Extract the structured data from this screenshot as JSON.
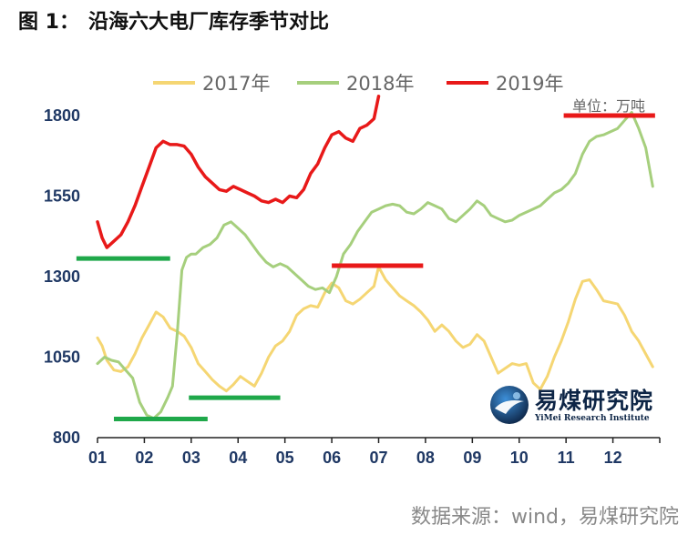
{
  "title": {
    "label": "图 1：",
    "text": "沿海六大电厂库存季节对比"
  },
  "unit_label": "单位：万吨",
  "source_label": "数据来源：wind，易煤研究院",
  "watermark": {
    "name": "易煤研究院",
    "subtitle": "YiMei Research Institute"
  },
  "chart_data": {
    "type": "line",
    "title": "沿海六大电厂库存季节对比",
    "ylabel": "万吨",
    "xlabel": "",
    "ylim": [
      800,
      1800
    ],
    "yticks": [
      800,
      1050,
      1300,
      1550,
      1800
    ],
    "xlim": [
      1,
      13
    ],
    "xticks": [
      "01",
      "02",
      "03",
      "04",
      "05",
      "06",
      "07",
      "08",
      "09",
      "10",
      "11",
      "12"
    ],
    "colors": {
      "2017年": "#f5d673",
      "2018年": "#a6cf7d",
      "2019年": "#e81919",
      "markers": "#1fa84a",
      "axis": "#222222",
      "tick": "#1f3864"
    },
    "series": [
      {
        "name": "2017年",
        "x": [
          1.0,
          1.1,
          1.2,
          1.35,
          1.5,
          1.65,
          1.8,
          1.95,
          2.1,
          2.25,
          2.4,
          2.55,
          2.7,
          2.85,
          3.0,
          3.15,
          3.3,
          3.45,
          3.6,
          3.75,
          3.9,
          4.05,
          4.2,
          4.35,
          4.5,
          4.65,
          4.8,
          4.95,
          5.1,
          5.25,
          5.4,
          5.55,
          5.7,
          5.85,
          6.0,
          6.15,
          6.3,
          6.45,
          6.6,
          6.75,
          6.9,
          7.0,
          7.15,
          7.3,
          7.45,
          7.6,
          7.75,
          7.9,
          8.05,
          8.2,
          8.35,
          8.5,
          8.65,
          8.8,
          8.95,
          9.1,
          9.25,
          9.4,
          9.55,
          9.7,
          9.85,
          10.0,
          10.15,
          10.3,
          10.45,
          10.6,
          10.75,
          10.9,
          11.05,
          11.2,
          11.35,
          11.5,
          11.65,
          11.8,
          11.95,
          12.1,
          12.25,
          12.4,
          12.55,
          12.7,
          12.85
        ],
        "values": [
          1110,
          1085,
          1040,
          1010,
          1005,
          1020,
          1060,
          1110,
          1150,
          1190,
          1175,
          1140,
          1130,
          1115,
          1080,
          1030,
          1005,
          980,
          960,
          945,
          965,
          990,
          975,
          960,
          1000,
          1050,
          1085,
          1100,
          1130,
          1180,
          1200,
          1210,
          1205,
          1250,
          1280,
          1265,
          1225,
          1215,
          1230,
          1250,
          1270,
          1330,
          1290,
          1265,
          1240,
          1225,
          1210,
          1190,
          1165,
          1130,
          1150,
          1130,
          1100,
          1080,
          1090,
          1120,
          1100,
          1050,
          1000,
          1015,
          1030,
          1025,
          1030,
          970,
          950,
          990,
          1050,
          1100,
          1160,
          1230,
          1285,
          1290,
          1260,
          1225,
          1220,
          1215,
          1180,
          1130,
          1100,
          1060,
          1020
        ]
      },
      {
        "name": "2018年",
        "x": [
          1.0,
          1.15,
          1.3,
          1.45,
          1.6,
          1.75,
          1.9,
          2.05,
          2.2,
          2.35,
          2.5,
          2.6,
          2.7,
          2.8,
          2.9,
          3.0,
          3.1,
          3.25,
          3.4,
          3.55,
          3.7,
          3.85,
          4.0,
          4.15,
          4.3,
          4.45,
          4.6,
          4.75,
          4.9,
          5.05,
          5.2,
          5.35,
          5.5,
          5.65,
          5.8,
          5.95,
          6.1,
          6.25,
          6.4,
          6.55,
          6.7,
          6.85,
          7.0,
          7.15,
          7.3,
          7.45,
          7.6,
          7.75,
          7.9,
          8.05,
          8.2,
          8.35,
          8.5,
          8.65,
          8.8,
          8.95,
          9.1,
          9.25,
          9.4,
          9.55,
          9.7,
          9.85,
          10.0,
          10.15,
          10.3,
          10.45,
          10.6,
          10.75,
          10.9,
          11.05,
          11.2,
          11.35,
          11.5,
          11.65,
          11.8,
          11.95,
          12.1,
          12.25,
          12.4,
          12.55,
          12.7,
          12.85
        ],
        "values": [
          1030,
          1050,
          1040,
          1035,
          1010,
          985,
          910,
          870,
          860,
          880,
          925,
          960,
          1120,
          1320,
          1360,
          1370,
          1370,
          1390,
          1400,
          1420,
          1460,
          1470,
          1450,
          1430,
          1400,
          1370,
          1345,
          1330,
          1340,
          1330,
          1310,
          1290,
          1270,
          1260,
          1265,
          1250,
          1300,
          1370,
          1400,
          1440,
          1470,
          1500,
          1510,
          1520,
          1525,
          1520,
          1500,
          1495,
          1510,
          1530,
          1520,
          1510,
          1480,
          1470,
          1490,
          1510,
          1535,
          1520,
          1490,
          1480,
          1470,
          1475,
          1490,
          1500,
          1510,
          1520,
          1540,
          1560,
          1570,
          1590,
          1620,
          1680,
          1720,
          1735,
          1740,
          1750,
          1760,
          1785,
          1810,
          1760,
          1700,
          1580
        ]
      },
      {
        "name": "2019年",
        "x": [
          1.0,
          1.1,
          1.2,
          1.35,
          1.5,
          1.65,
          1.8,
          1.95,
          2.1,
          2.25,
          2.4,
          2.55,
          2.7,
          2.85,
          3.0,
          3.15,
          3.3,
          3.45,
          3.6,
          3.75,
          3.9,
          4.05,
          4.2,
          4.35,
          4.5,
          4.65,
          4.8,
          4.95,
          5.1,
          5.25,
          5.4,
          5.55,
          5.7,
          5.85,
          6.0,
          6.15,
          6.3,
          6.45,
          6.6,
          6.75,
          6.9,
          7.0
        ],
        "values": [
          1470,
          1420,
          1390,
          1410,
          1430,
          1470,
          1520,
          1580,
          1640,
          1700,
          1720,
          1710,
          1710,
          1705,
          1680,
          1640,
          1610,
          1590,
          1570,
          1565,
          1580,
          1570,
          1560,
          1550,
          1535,
          1530,
          1540,
          1530,
          1550,
          1545,
          1570,
          1620,
          1650,
          1700,
          1740,
          1750,
          1730,
          1720,
          1760,
          1770,
          1790,
          1860
        ]
      }
    ],
    "markers": [
      {
        "color": "#1fa84a",
        "x_from": 0.55,
        "x_to": 2.55,
        "y": 1356
      },
      {
        "color": "#1fa84a",
        "x_from": 1.35,
        "x_to": 3.35,
        "y": 858
      },
      {
        "color": "#1fa84a",
        "x_from": 2.95,
        "x_to": 4.9,
        "y": 924
      },
      {
        "color": "#e81919",
        "x_from": 6.0,
        "x_to": 7.95,
        "y": 1334
      },
      {
        "color": "#e81919",
        "x_from": 10.95,
        "x_to": 12.9,
        "y": 1800
      }
    ]
  }
}
